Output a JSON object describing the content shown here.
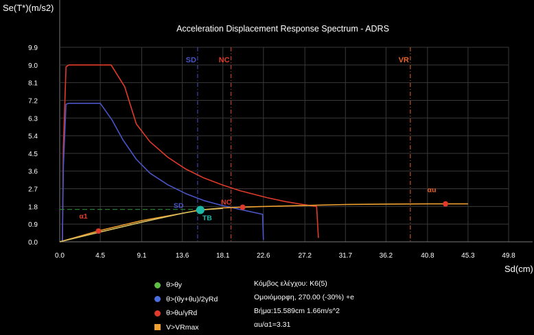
{
  "chart_data": {
    "type": "line",
    "title": "Acceleration Displacement Response Spectrum - ADRS",
    "ylabel": "Se(T*)(m/s2)",
    "xlabel": "Sd(cm)",
    "xlim": [
      0,
      49.8
    ],
    "ylim": [
      0,
      9.9
    ],
    "x_ticks": [
      "0.0",
      "4.5",
      "9.1",
      "13.6",
      "18.1",
      "22.6",
      "27.2",
      "31.7",
      "36.2",
      "40.8",
      "45.3",
      "49.8"
    ],
    "y_ticks": [
      "0.0",
      "0.9",
      "1.8",
      "2.7",
      "3.6",
      "4.5",
      "5.4",
      "6.3",
      "7.2",
      "8.1",
      "9.0",
      "9.9"
    ],
    "grid": true,
    "series": [
      {
        "color": "#e03a2a",
        "points": [
          [
            0.3,
            0
          ],
          [
            0.4,
            4.8
          ],
          [
            0.7,
            8.9
          ],
          [
            1,
            9.0
          ],
          [
            5.7,
            9.0
          ],
          [
            7.2,
            7.9
          ],
          [
            8.5,
            6.0
          ],
          [
            10,
            5.1
          ],
          [
            12,
            4.3
          ],
          [
            14,
            3.7
          ],
          [
            16,
            3.25
          ],
          [
            18,
            2.9
          ],
          [
            20,
            2.6
          ],
          [
            23,
            2.25
          ],
          [
            25,
            2.05
          ],
          [
            27,
            1.9
          ],
          [
            28.5,
            1.8
          ],
          [
            28.7,
            0.2
          ]
        ]
      },
      {
        "color": "#4a55c8",
        "points": [
          [
            0.3,
            0
          ],
          [
            0.4,
            3.8
          ],
          [
            0.7,
            7.0
          ],
          [
            1,
            7.05
          ],
          [
            4.5,
            7.05
          ],
          [
            5.8,
            6.2
          ],
          [
            7,
            5.2
          ],
          [
            8.5,
            4.2
          ],
          [
            10,
            3.5
          ],
          [
            12,
            2.9
          ],
          [
            14,
            2.45
          ],
          [
            16,
            2.1
          ],
          [
            18,
            1.85
          ],
          [
            20,
            1.65
          ],
          [
            22.5,
            1.4
          ],
          [
            22.6,
            0.1
          ]
        ]
      },
      {
        "color": "#f0a030",
        "points": [
          [
            0,
            0
          ],
          [
            4.5,
            0.58
          ],
          [
            9.1,
            1.08
          ],
          [
            13.6,
            1.45
          ],
          [
            15.6,
            1.62
          ],
          [
            18.1,
            1.73
          ],
          [
            22.6,
            1.8
          ],
          [
            27.2,
            1.85
          ],
          [
            31.7,
            1.9
          ],
          [
            36.2,
            1.92
          ],
          [
            40.8,
            1.93
          ],
          [
            45.3,
            1.93
          ]
        ]
      },
      {
        "color": "#d8c060",
        "points": [
          [
            0,
            0
          ],
          [
            4.5,
            0.5
          ],
          [
            9.1,
            1.0
          ],
          [
            13.6,
            1.45
          ],
          [
            15.6,
            1.62
          ],
          [
            18.1,
            1.7
          ]
        ]
      },
      {
        "color": "#2e8a3a",
        "style": "dashed",
        "points": [
          [
            0,
            1.65
          ],
          [
            15.6,
            1.65
          ]
        ]
      }
    ],
    "vertical_lines": [
      {
        "label": "SD",
        "x": 15.3,
        "color": "#4a55c8"
      },
      {
        "label": "NC",
        "x": 19.0,
        "color": "#e03a2a"
      },
      {
        "label": "VR",
        "x": 38.9,
        "color": "#e8632a"
      }
    ],
    "markers": [
      {
        "x": 4.3,
        "y": 0.55,
        "color": "#e03a2a",
        "label": "α1",
        "label_color": "#e03a2a"
      },
      {
        "x": 20.3,
        "y": 1.76,
        "color": "#e03a2a",
        "label": "NC",
        "label_color": "#e03a2a"
      },
      {
        "x": 42.8,
        "y": 1.93,
        "color": "#e03a2a",
        "label": "αu",
        "label_color": "#e8632a"
      },
      {
        "x": 15.6,
        "y": 1.62,
        "color": "#1fb8a8",
        "label": "TB",
        "label_color": "#1fb8a8",
        "big": true
      }
    ],
    "extra_labels": [
      {
        "label": "SD",
        "x": 13.8,
        "y": 1.8,
        "color": "#4a55c8"
      }
    ]
  },
  "legend": [
    {
      "label": "θ>θy",
      "color": "#5fbf45",
      "shape": "circle"
    },
    {
      "label": "θ>(θy+θu)/2γRd",
      "color": "#4a6ee0",
      "shape": "circle"
    },
    {
      "label": "θ>θu/γRd",
      "color": "#e03a2a",
      "shape": "circle"
    },
    {
      "label": "V>VRmax",
      "color": "#f0a030",
      "shape": "square"
    }
  ],
  "info": {
    "node": "Κόμβος ελέγχου: K6(5)",
    "load": "Ομοιόμορφη, 270.00 (-30%) +e",
    "step": "Βήμα:15.589cm 1.66m/s^2",
    "ratio": "αu/α1=3.31"
  }
}
